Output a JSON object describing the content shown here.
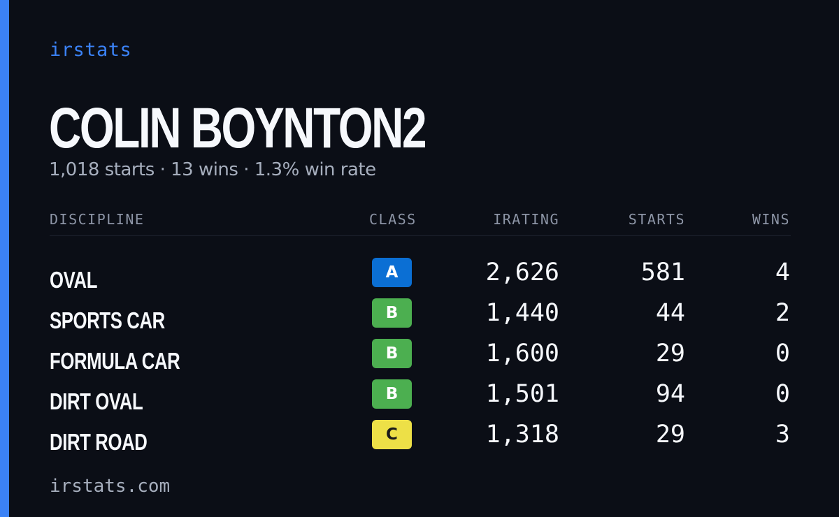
{
  "brand": "irstats",
  "driver": {
    "name": "COLIN BOYNTON2",
    "summary": "1,018 starts · 13 wins · 1.3% win rate"
  },
  "table": {
    "headers": {
      "discipline": "DISCIPLINE",
      "class": "CLASS",
      "irating": "IRATING",
      "starts": "STARTS",
      "wins": "WINS"
    },
    "rows": [
      {
        "discipline": "OVAL",
        "class": "A",
        "irating": "2,626",
        "starts": "581",
        "wins": "4"
      },
      {
        "discipline": "SPORTS CAR",
        "class": "B",
        "irating": "1,440",
        "starts": "44",
        "wins": "2"
      },
      {
        "discipline": "FORMULA CAR",
        "class": "B",
        "irating": "1,600",
        "starts": "29",
        "wins": "0"
      },
      {
        "discipline": "DIRT OVAL",
        "class": "B",
        "irating": "1,501",
        "starts": "94",
        "wins": "0"
      },
      {
        "discipline": "DIRT ROAD",
        "class": "C",
        "irating": "1,318",
        "starts": "29",
        "wins": "3"
      }
    ]
  },
  "class_colors": {
    "A": {
      "bg": "#0b6fd4",
      "fg": "#ffffff"
    },
    "B": {
      "bg": "#4caf50",
      "fg": "#ffffff"
    },
    "C": {
      "bg": "#ede047",
      "fg": "#1a1a1a"
    }
  },
  "colors": {
    "accent": "#3b82f6",
    "background": "#0b0e16"
  },
  "footer": "irstats.com"
}
